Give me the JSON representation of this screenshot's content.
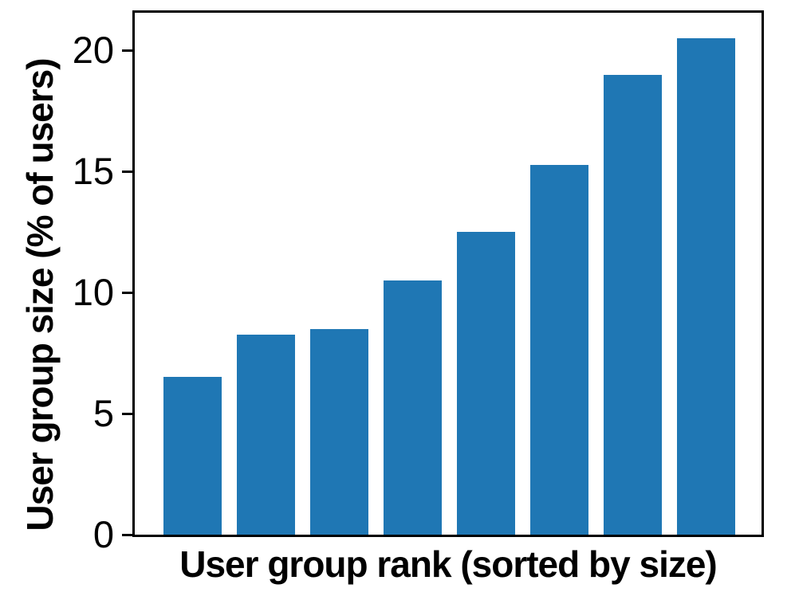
{
  "chart_data": {
    "type": "bar",
    "title": "",
    "xlabel": "User group rank (sorted by size)",
    "ylabel": "User group size (% of users)",
    "values": [
      6.5,
      8.25,
      8.5,
      10.5,
      12.5,
      15.25,
      19.0,
      20.5
    ],
    "yticks": [
      0,
      5,
      10,
      15,
      20
    ],
    "ylim": [
      0,
      21.55
    ],
    "x_tick_labels_visible": false,
    "grid": false,
    "legend": null,
    "bar_color": "#1f77b4",
    "axis_color": "#000000",
    "background_color": "#ffffff",
    "bar_width_fraction": 0.8
  }
}
